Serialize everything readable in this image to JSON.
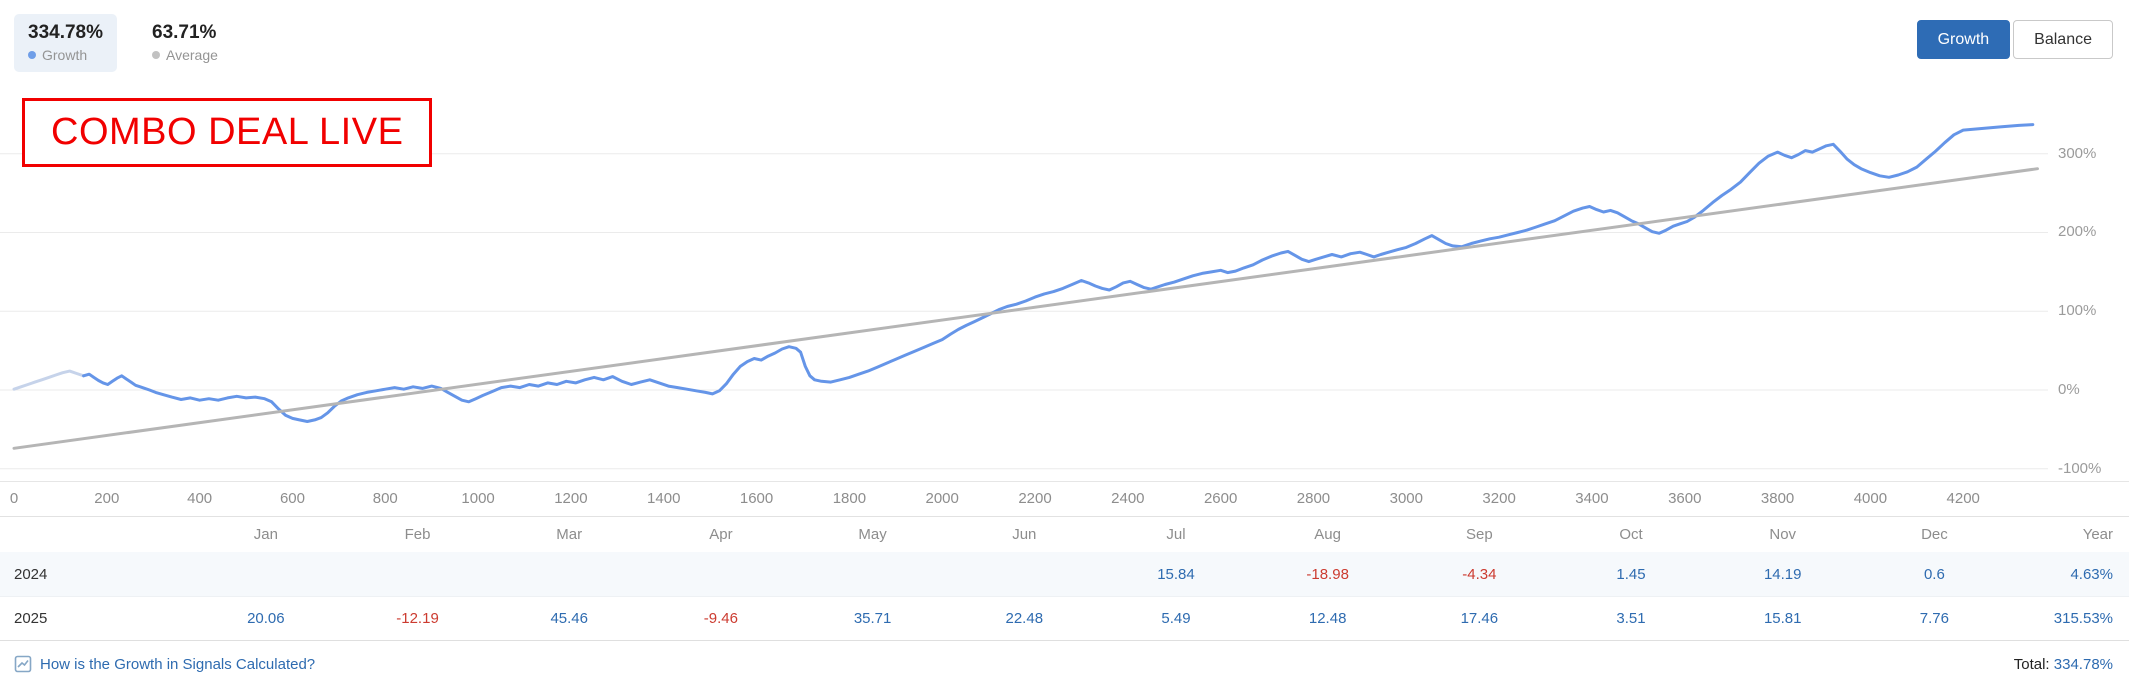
{
  "header": {
    "growth_stat": {
      "value": "334.78%",
      "label": "Growth"
    },
    "average_stat": {
      "value": "63.71%",
      "label": "Average"
    },
    "buttons": {
      "growth": "Growth",
      "balance": "Balance"
    }
  },
  "banner": {
    "text": "COMBO DEAL LIVE"
  },
  "colors": {
    "positive": "#2e6bb0",
    "negative": "#cc3b30",
    "accent_button": "#2e6cb5",
    "banner_red": "#f10000",
    "growth_line": "#6595e8",
    "pre_line": "#c6d3ea",
    "average_line": "#b5b5b5",
    "gridline": "#ebebeb"
  },
  "chart_data": {
    "type": "line",
    "title": "Signal growth chart (Growth %, by trade number)",
    "legend_position": "top-left",
    "grid": true,
    "x_axis": {
      "ticks": [
        0,
        200,
        400,
        600,
        800,
        1000,
        1200,
        1400,
        1600,
        1800,
        2000,
        2200,
        2400,
        2600,
        2800,
        3000,
        3200,
        3400,
        3600,
        3800,
        4000,
        4200
      ],
      "max": 4400
    },
    "y_axis": {
      "unit": "%",
      "ticks_percent": [
        300,
        200,
        100,
        0,
        -100
      ],
      "range": [
        -100,
        350
      ]
    },
    "series": [
      {
        "name": "growth-pre",
        "color": "#c6d3ea",
        "width": 3,
        "points": [
          [
            0,
            1
          ],
          [
            15,
            4
          ],
          [
            30,
            7
          ],
          [
            45,
            10
          ],
          [
            60,
            13
          ],
          [
            75,
            16
          ],
          [
            90,
            19
          ],
          [
            105,
            22
          ],
          [
            120,
            24
          ],
          [
            135,
            21
          ],
          [
            150,
            18
          ]
        ]
      },
      {
        "name": "growth",
        "color": "#6595e8",
        "width": 3,
        "points": [
          [
            150,
            18
          ],
          [
            162,
            20
          ],
          [
            172,
            16
          ],
          [
            182,
            12
          ],
          [
            192,
            9
          ],
          [
            202,
            7
          ],
          [
            212,
            11
          ],
          [
            222,
            15
          ],
          [
            232,
            18
          ],
          [
            242,
            14
          ],
          [
            252,
            10
          ],
          [
            262,
            6
          ],
          [
            272,
            4
          ],
          [
            282,
            2
          ],
          [
            292,
            0
          ],
          [
            305,
            -3
          ],
          [
            322,
            -6
          ],
          [
            340,
            -9
          ],
          [
            360,
            -12
          ],
          [
            380,
            -10
          ],
          [
            400,
            -13
          ],
          [
            420,
            -11
          ],
          [
            440,
            -13
          ],
          [
            460,
            -10
          ],
          [
            480,
            -8
          ],
          [
            500,
            -10
          ],
          [
            520,
            -9
          ],
          [
            540,
            -11
          ],
          [
            555,
            -15
          ],
          [
            570,
            -24
          ],
          [
            585,
            -32
          ],
          [
            600,
            -36
          ],
          [
            615,
            -38
          ],
          [
            632,
            -40
          ],
          [
            648,
            -38
          ],
          [
            662,
            -35
          ],
          [
            676,
            -29
          ],
          [
            690,
            -21
          ],
          [
            705,
            -14
          ],
          [
            720,
            -10
          ],
          [
            740,
            -6
          ],
          [
            760,
            -3
          ],
          [
            780,
            -1
          ],
          [
            800,
            1
          ],
          [
            820,
            3
          ],
          [
            840,
            1
          ],
          [
            860,
            4
          ],
          [
            880,
            2
          ],
          [
            900,
            5
          ],
          [
            920,
            2
          ],
          [
            935,
            -3
          ],
          [
            950,
            -8
          ],
          [
            965,
            -13
          ],
          [
            980,
            -15
          ],
          [
            995,
            -11
          ],
          [
            1010,
            -7
          ],
          [
            1030,
            -2
          ],
          [
            1050,
            3
          ],
          [
            1070,
            5
          ],
          [
            1090,
            3
          ],
          [
            1110,
            7
          ],
          [
            1130,
            5
          ],
          [
            1150,
            9
          ],
          [
            1170,
            7
          ],
          [
            1190,
            11
          ],
          [
            1210,
            9
          ],
          [
            1230,
            13
          ],
          [
            1250,
            16
          ],
          [
            1270,
            13
          ],
          [
            1290,
            17
          ],
          [
            1310,
            11
          ],
          [
            1330,
            7
          ],
          [
            1350,
            10
          ],
          [
            1370,
            13
          ],
          [
            1390,
            9
          ],
          [
            1410,
            5
          ],
          [
            1430,
            3
          ],
          [
            1450,
            1
          ],
          [
            1470,
            -1
          ],
          [
            1490,
            -3
          ],
          [
            1505,
            -5
          ],
          [
            1520,
            -1
          ],
          [
            1535,
            8
          ],
          [
            1550,
            20
          ],
          [
            1565,
            30
          ],
          [
            1580,
            36
          ],
          [
            1595,
            40
          ],
          [
            1610,
            38
          ],
          [
            1625,
            43
          ],
          [
            1640,
            47
          ],
          [
            1655,
            52
          ],
          [
            1670,
            55
          ],
          [
            1685,
            53
          ],
          [
            1695,
            48
          ],
          [
            1705,
            30
          ],
          [
            1715,
            18
          ],
          [
            1725,
            13
          ],
          [
            1740,
            11
          ],
          [
            1760,
            10
          ],
          [
            1780,
            13
          ],
          [
            1800,
            16
          ],
          [
            1820,
            20
          ],
          [
            1840,
            24
          ],
          [
            1860,
            29
          ],
          [
            1880,
            34
          ],
          [
            1900,
            39
          ],
          [
            1920,
            44
          ],
          [
            1940,
            49
          ],
          [
            1960,
            54
          ],
          [
            1980,
            59
          ],
          [
            2000,
            64
          ],
          [
            2018,
            71
          ],
          [
            2035,
            77
          ],
          [
            2052,
            82
          ],
          [
            2070,
            87
          ],
          [
            2088,
            92
          ],
          [
            2105,
            97
          ],
          [
            2122,
            102
          ],
          [
            2140,
            106
          ],
          [
            2160,
            109
          ],
          [
            2180,
            113
          ],
          [
            2200,
            118
          ],
          [
            2220,
            122
          ],
          [
            2240,
            125
          ],
          [
            2260,
            129
          ],
          [
            2280,
            134
          ],
          [
            2300,
            139
          ],
          [
            2315,
            136
          ],
          [
            2330,
            132
          ],
          [
            2345,
            129
          ],
          [
            2360,
            127
          ],
          [
            2375,
            131
          ],
          [
            2390,
            136
          ],
          [
            2405,
            138
          ],
          [
            2420,
            134
          ],
          [
            2435,
            130
          ],
          [
            2450,
            128
          ],
          [
            2465,
            131
          ],
          [
            2480,
            134
          ],
          [
            2500,
            137
          ],
          [
            2520,
            141
          ],
          [
            2540,
            145
          ],
          [
            2560,
            148
          ],
          [
            2580,
            150
          ],
          [
            2600,
            152
          ],
          [
            2615,
            149
          ],
          [
            2632,
            151
          ],
          [
            2650,
            155
          ],
          [
            2670,
            159
          ],
          [
            2690,
            165
          ],
          [
            2710,
            170
          ],
          [
            2730,
            174
          ],
          [
            2745,
            176
          ],
          [
            2760,
            171
          ],
          [
            2775,
            166
          ],
          [
            2790,
            163
          ],
          [
            2805,
            166
          ],
          [
            2822,
            169
          ],
          [
            2840,
            172
          ],
          [
            2860,
            169
          ],
          [
            2880,
            173
          ],
          [
            2900,
            175
          ],
          [
            2915,
            172
          ],
          [
            2930,
            169
          ],
          [
            2945,
            172
          ],
          [
            2962,
            175
          ],
          [
            2980,
            178
          ],
          [
            3000,
            181
          ],
          [
            3020,
            186
          ],
          [
            3040,
            192
          ],
          [
            3055,
            196
          ],
          [
            3070,
            191
          ],
          [
            3085,
            186
          ],
          [
            3100,
            183
          ],
          [
            3120,
            182
          ],
          [
            3140,
            186
          ],
          [
            3160,
            189
          ],
          [
            3180,
            192
          ],
          [
            3200,
            194
          ],
          [
            3220,
            197
          ],
          [
            3240,
            200
          ],
          [
            3260,
            203
          ],
          [
            3280,
            207
          ],
          [
            3300,
            211
          ],
          [
            3320,
            215
          ],
          [
            3340,
            221
          ],
          [
            3360,
            227
          ],
          [
            3380,
            231
          ],
          [
            3395,
            233
          ],
          [
            3410,
            229
          ],
          [
            3425,
            226
          ],
          [
            3440,
            228
          ],
          [
            3455,
            225
          ],
          [
            3470,
            220
          ],
          [
            3485,
            215
          ],
          [
            3500,
            211
          ],
          [
            3515,
            206
          ],
          [
            3530,
            201
          ],
          [
            3545,
            199
          ],
          [
            3560,
            203
          ],
          [
            3575,
            208
          ],
          [
            3590,
            211
          ],
          [
            3605,
            214
          ],
          [
            3620,
            219
          ],
          [
            3640,
            228
          ],
          [
            3660,
            238
          ],
          [
            3680,
            247
          ],
          [
            3700,
            255
          ],
          [
            3720,
            264
          ],
          [
            3740,
            276
          ],
          [
            3760,
            288
          ],
          [
            3780,
            297
          ],
          [
            3800,
            302
          ],
          [
            3815,
            298
          ],
          [
            3830,
            295
          ],
          [
            3845,
            299
          ],
          [
            3860,
            304
          ],
          [
            3875,
            302
          ],
          [
            3890,
            306
          ],
          [
            3905,
            310
          ],
          [
            3920,
            312
          ],
          [
            3935,
            303
          ],
          [
            3950,
            293
          ],
          [
            3965,
            286
          ],
          [
            3980,
            281
          ],
          [
            4000,
            276
          ],
          [
            4020,
            272
          ],
          [
            4040,
            270
          ],
          [
            4060,
            273
          ],
          [
            4080,
            277
          ],
          [
            4100,
            283
          ],
          [
            4120,
            293
          ],
          [
            4140,
            303
          ],
          [
            4160,
            314
          ],
          [
            4180,
            324
          ],
          [
            4200,
            330
          ],
          [
            4240,
            332
          ],
          [
            4280,
            334
          ],
          [
            4320,
            336
          ],
          [
            4350,
            337
          ]
        ]
      },
      {
        "name": "average",
        "color": "#b5b5b5",
        "width": 3,
        "points": [
          [
            0,
            -74
          ],
          [
            4360,
            281
          ]
        ]
      }
    ]
  },
  "table": {
    "months": [
      "Jan",
      "Feb",
      "Mar",
      "Apr",
      "May",
      "Jun",
      "Jul",
      "Aug",
      "Sep",
      "Oct",
      "Nov",
      "Dec",
      "Year"
    ],
    "rows": [
      {
        "year": "2024",
        "values": [
          "",
          "",
          "",
          "",
          "",
          "",
          "15.84",
          "-18.98",
          "-4.34",
          "1.45",
          "14.19",
          "0.6",
          "4.63%"
        ]
      },
      {
        "year": "2025",
        "values": [
          "20.06",
          "-12.19",
          "45.46",
          "-9.46",
          "35.71",
          "22.48",
          "5.49",
          "12.48",
          "17.46",
          "3.51",
          "15.81",
          "7.76",
          "315.53%"
        ]
      }
    ]
  },
  "footer": {
    "help_link": "How is the Growth in Signals Calculated?",
    "total_label": "Total:",
    "total_value": "334.78%"
  }
}
